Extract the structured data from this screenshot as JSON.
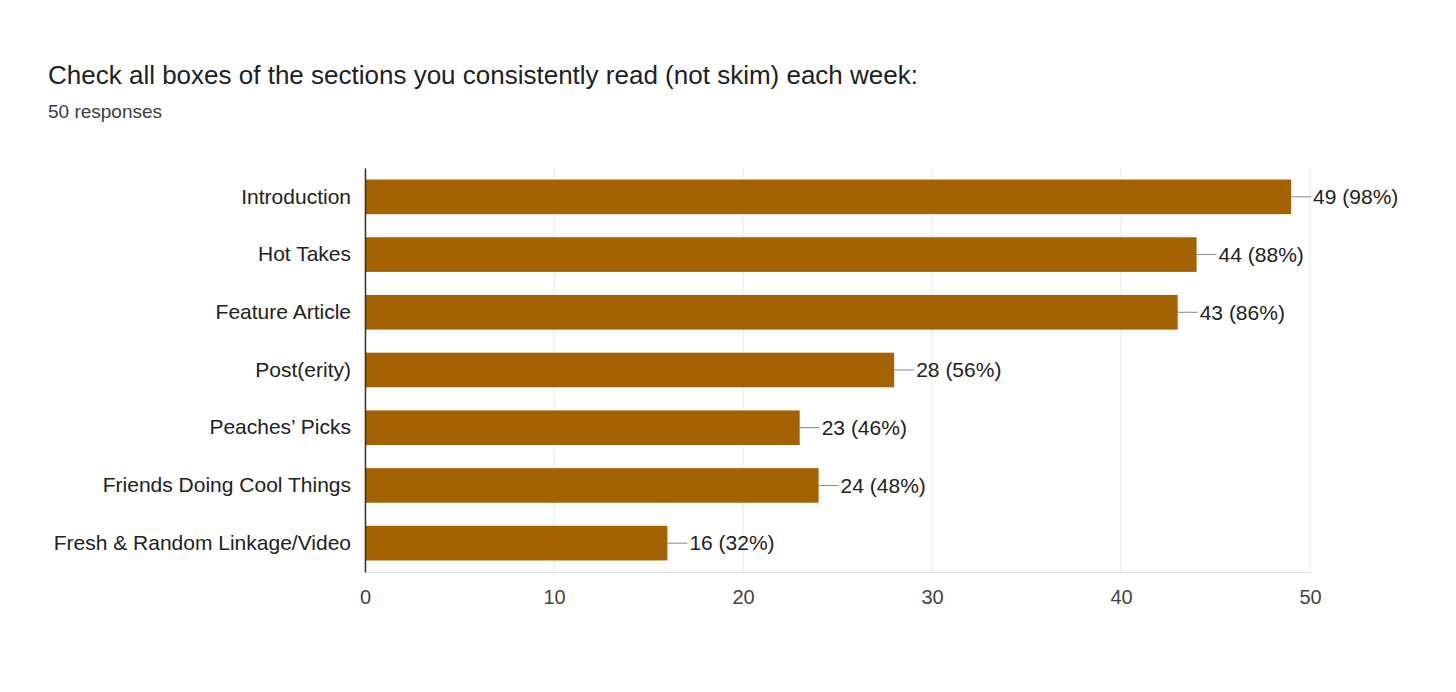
{
  "chart_data": {
    "type": "bar",
    "orientation": "horizontal",
    "title": "Check all boxes of the sections you consistently read (not skim) each week:",
    "subtitle": "50 responses",
    "categories": [
      "Introduction",
      "Hot Takes",
      "Feature Article",
      "Post(erity)",
      "Peaches’ Picks",
      "Friends Doing Cool Things",
      "Fresh & Random Linkage/Video"
    ],
    "values": [
      49,
      44,
      43,
      28,
      23,
      24,
      16
    ],
    "value_labels": [
      "49 (98%)",
      "44 (88%)",
      "43 (86%)",
      "28 (56%)",
      "23 (46%)",
      "24 (48%)",
      "16 (32%)"
    ],
    "color": "#a56200",
    "xlim": [
      0,
      50
    ],
    "xticks": [
      0,
      10,
      20,
      30,
      40,
      50
    ],
    "grid": true,
    "data_labels": true
  }
}
